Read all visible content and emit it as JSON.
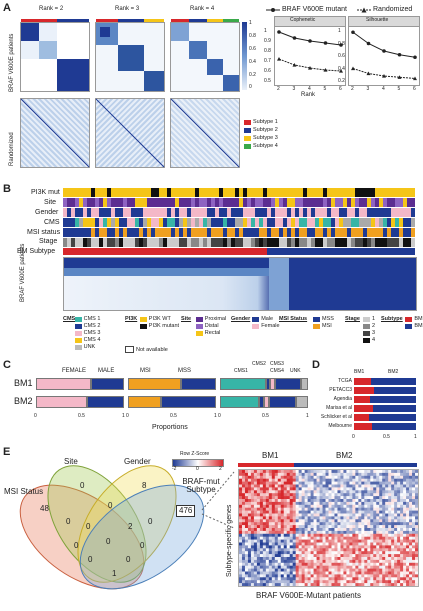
{
  "panelA": {
    "letter": "A",
    "rank_titles": [
      "Rank = 2",
      "Rank = 3",
      "Rank = 4"
    ],
    "row_label_top": "BRAF V600E patients",
    "row_label_bottom": "Randomized",
    "colorbar_ticks": [
      "1",
      "0.8",
      "0.6",
      "0.4",
      "0.2",
      "0"
    ],
    "legend_title_mut": "BRAF V600E mutant",
    "legend_title_rand": "Randomized",
    "subtypes": [
      {
        "label": "Subtype 1",
        "color": "#d7272b"
      },
      {
        "label": "Subtype 2",
        "color": "#1f3a93"
      },
      {
        "label": "Subtype 3",
        "color": "#f5c518"
      },
      {
        "label": "Subtype 4",
        "color": "#3aa94a"
      }
    ],
    "cophenetic": {
      "title": "Cophenetic",
      "yticks": [
        "1",
        "0.9",
        "0.8",
        "0.7",
        "0.6",
        "0.5"
      ],
      "xticks": [
        "2",
        "3",
        "4",
        "5",
        "6"
      ],
      "xlabel": "Rank"
    },
    "silhouette": {
      "title": "Silhouette",
      "yticks": [
        "1",
        "0.8",
        "0.6",
        "0.4",
        "0.2"
      ],
      "xticks": [
        "2",
        "3",
        "4",
        "5",
        "6"
      ],
      "xlabel": "Rank"
    }
  },
  "chart_data": [
    {
      "type": "line",
      "title": "Cophenetic",
      "xlabel": "Rank",
      "ylabel": "",
      "x": [
        2,
        3,
        4,
        5,
        6
      ],
      "ylim": [
        0.5,
        1.0
      ],
      "series": [
        {
          "name": "BRAF V600E mutant",
          "values": [
            0.99,
            0.93,
            0.9,
            0.88,
            0.86
          ]
        },
        {
          "name": "Randomized",
          "values": [
            0.72,
            0.66,
            0.63,
            0.61,
            0.6
          ]
        }
      ]
    },
    {
      "type": "line",
      "title": "Silhouette",
      "xlabel": "Rank",
      "ylabel": "",
      "x": [
        2,
        3,
        4,
        5,
        6
      ],
      "ylim": [
        0.2,
        1.0
      ],
      "series": [
        {
          "name": "BRAF V600E mutant",
          "values": [
            0.98,
            0.8,
            0.68,
            0.62,
            0.58
          ]
        },
        {
          "name": "Randomized",
          "values": [
            0.4,
            0.32,
            0.28,
            0.26,
            0.24
          ]
        }
      ]
    },
    {
      "type": "bar",
      "title": "",
      "categories": [
        "BM1",
        "BM2"
      ],
      "xlabel": "Proportions",
      "series": [
        {
          "name": "FEMALE",
          "values": [
            0.62,
            0.58
          ]
        },
        {
          "name": "MALE",
          "values": [
            0.38,
            0.42
          ]
        },
        {
          "name": "MSI",
          "values": [
            0.6,
            0.38
          ]
        },
        {
          "name": "MSS",
          "values": [
            0.4,
            0.62
          ]
        },
        {
          "name": "CMS1",
          "values": [
            0.52,
            0.44
          ]
        },
        {
          "name": "CMS2",
          "values": [
            0.05,
            0.06
          ]
        },
        {
          "name": "CMS3",
          "values": [
            0.05,
            0.06
          ]
        },
        {
          "name": "CMS4",
          "values": [
            0.3,
            0.3
          ]
        },
        {
          "name": "UNK",
          "values": [
            0.08,
            0.14
          ]
        }
      ]
    },
    {
      "type": "bar",
      "title": "",
      "categories": [
        "TCGA",
        "PETACC3",
        "Agendia",
        "Marisa et al",
        "Schlicker et al",
        "Melbourne"
      ],
      "series": [
        {
          "name": "BM1",
          "values": [
            0.28,
            0.32,
            0.26,
            0.3,
            0.24,
            0.29
          ]
        },
        {
          "name": "BM2",
          "values": [
            0.72,
            0.68,
            0.74,
            0.7,
            0.76,
            0.71
          ]
        }
      ]
    }
  ],
  "panelB": {
    "letter": "B",
    "track_labels": [
      "PI3K mut",
      "Site",
      "Gender",
      "CMS",
      "MSI status",
      "Stage",
      "BM Subtype"
    ],
    "heatmap_label": "BRAF V600E patients",
    "legend": {
      "cms_title": "CMS",
      "cms": [
        "CMS 1",
        "CMS 2",
        "CMS 3",
        "CMS 4",
        "UNK"
      ],
      "pi3k_title": "PI3K",
      "pi3k": [
        "PI3K WT",
        "PI3K mutant"
      ],
      "site_title": "Site",
      "site": [
        "Proximal",
        "Distal",
        "Rectal"
      ],
      "gender_title": "Gender",
      "gender": [
        "Male",
        "Female"
      ],
      "msi_title": "MSI Status",
      "msi": [
        "MSS",
        "MSI"
      ],
      "stage_title": "Stage",
      "stage": [
        "1",
        "2",
        "3",
        "4"
      ],
      "subtype_title": "Subtype",
      "subtype": [
        "BM1",
        "BM2"
      ],
      "na": "Not available"
    }
  },
  "panelC": {
    "letter": "C",
    "rows": [
      "BM1",
      "BM2"
    ],
    "head_gender": [
      "FEMALE",
      "MALE"
    ],
    "head_msi": [
      "MSI",
      "MSS"
    ],
    "head_cms": [
      "CMS1",
      "CMS2",
      "CMS3",
      "CMS4",
      "UNK"
    ],
    "xlabel": "Proportions",
    "ticks": [
      "0",
      "0.5",
      "1"
    ]
  },
  "panelD": {
    "letter": "D",
    "head": [
      "BM1",
      "BM2"
    ],
    "rows": [
      "TCGA",
      "PETACC3",
      "Agendia",
      "Marisa et al",
      "Schlicker et al",
      "Melbourne"
    ],
    "ticks": [
      "0",
      "0.5",
      "1"
    ]
  },
  "panelE": {
    "letter": "E",
    "venn_labels": [
      "MSI Status",
      "Site",
      "Gender",
      "BRAF-mut Subtype"
    ],
    "counts": [
      "48",
      "0",
      "8",
      "0",
      "0",
      "0",
      "2",
      "0",
      "0",
      "0",
      "0",
      "0",
      "1",
      "0",
      "476"
    ],
    "scale_title": "Row Z-Score",
    "scale_ticks": [
      "-2",
      "0",
      "2"
    ],
    "heat_head": [
      "BM1",
      "BM2"
    ],
    "heat_ylabel": "Subtype-specific genes",
    "heat_xlabel": "BRAF V600E-Mutant patients"
  },
  "colors": {
    "red": "#d7272b",
    "navy": "#1f3a93",
    "blue": "#1e4d9b",
    "yellow": "#f5c518",
    "green": "#3aa94a",
    "pink": "#f4b8c8",
    "teal": "#37b5a7",
    "orange": "#f0a020"
  }
}
